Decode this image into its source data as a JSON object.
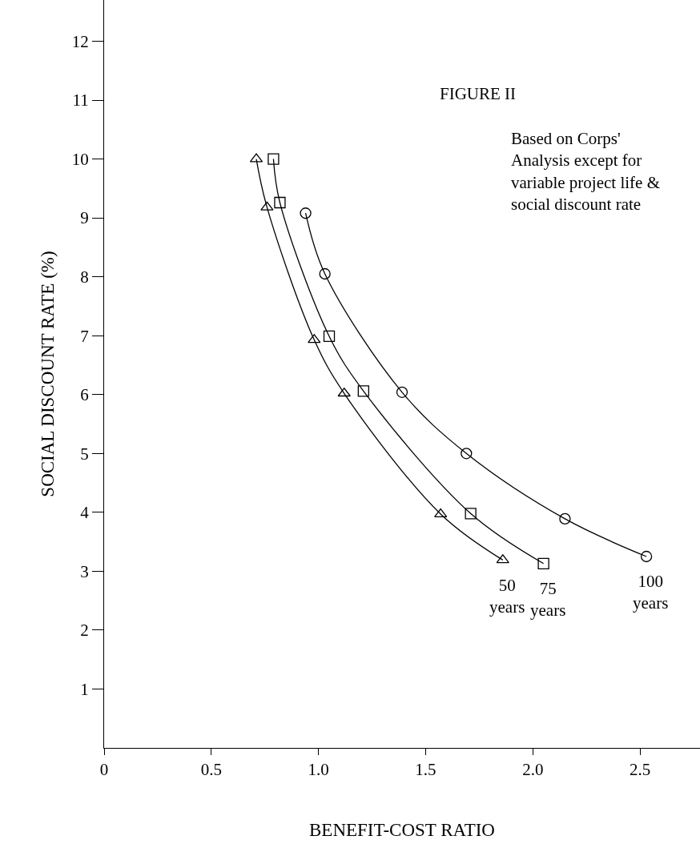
{
  "chart_data": {
    "type": "line",
    "xlabel": "BENEFIT-COST RATIO",
    "ylabel": "SOCIAL DISCOUNT RATE (%)",
    "annotations": [
      "FIGURE II",
      "Based on Corps' Analysis except for variable project life & social discount rate"
    ],
    "xlim": [
      0,
      2.78
    ],
    "xticks": [
      0,
      0.5,
      {
        "value": 1,
        "label": "1.0"
      },
      1.5,
      {
        "value": 2,
        "label": "2.0"
      },
      2.5
    ],
    "ylim": [
      0,
      12.7
    ],
    "yticks": [
      1,
      2,
      3,
      4,
      5,
      6,
      7,
      8,
      9,
      10,
      11,
      12
    ],
    "line_style": "solid",
    "series": [
      {
        "name": "50 years",
        "color": "#000000",
        "marker": "triangle",
        "x": [
          0.71,
          0.76,
          0.98,
          1.12,
          1.57,
          1.86
        ],
        "values": [
          10.0,
          9.18,
          6.93,
          6.02,
          3.97,
          3.19
        ]
      },
      {
        "name": "75 years",
        "color": "#000000",
        "marker": "square",
        "x": [
          0.79,
          0.82,
          1.05,
          1.21,
          1.71,
          2.05
        ],
        "values": [
          10.0,
          9.26,
          6.99,
          6.06,
          3.98,
          3.13
        ]
      },
      {
        "name": "100 years",
        "color": "#000000",
        "marker": "circle",
        "x": [
          0.94,
          1.03,
          1.39,
          1.69,
          2.15,
          2.53
        ],
        "values": [
          9.08,
          8.05,
          6.04,
          5.0,
          3.89,
          3.25
        ]
      }
    ]
  }
}
